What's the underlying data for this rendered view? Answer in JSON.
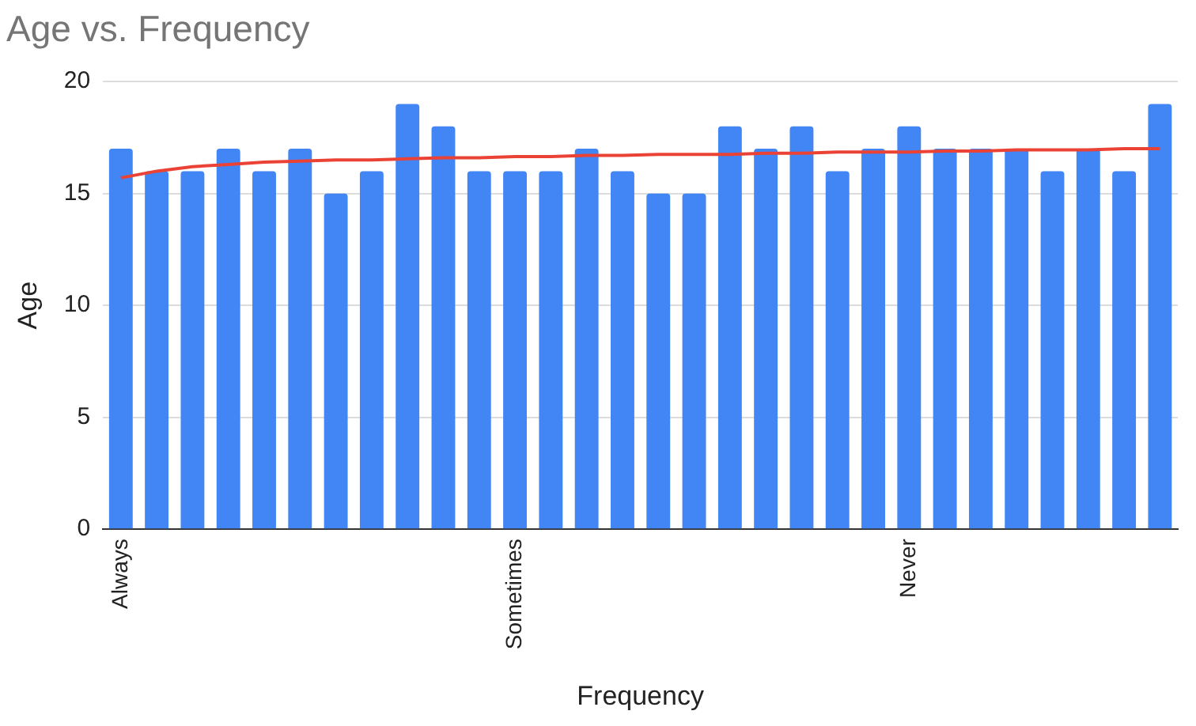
{
  "chart_data": {
    "type": "bar",
    "title": "Age vs. Frequency",
    "xlabel": "Frequency",
    "ylabel": "Age",
    "categories": [
      "Always",
      null,
      null,
      null,
      null,
      null,
      null,
      null,
      null,
      null,
      null,
      "Sometimes",
      null,
      null,
      null,
      null,
      null,
      null,
      null,
      null,
      null,
      null,
      "Never",
      null,
      null,
      null,
      null,
      null,
      null,
      null
    ],
    "series": [
      {
        "color": "#4285f4",
        "values": [
          17,
          16,
          16,
          17,
          16,
          17,
          15,
          16,
          19,
          18,
          16,
          16,
          16,
          17,
          16,
          15,
          15,
          18,
          17,
          18,
          16,
          17,
          18,
          17,
          17,
          17,
          16,
          17,
          16,
          19
        ]
      },
      {
        "type": "line",
        "color": "#ea4335",
        "values": [
          15.7,
          16.0,
          16.2,
          16.3,
          16.4,
          16.45,
          16.5,
          16.5,
          16.55,
          16.6,
          16.6,
          16.65,
          16.65,
          16.7,
          16.7,
          16.75,
          16.75,
          16.75,
          16.8,
          16.8,
          16.85,
          16.85,
          16.85,
          16.9,
          16.9,
          16.95,
          16.95,
          16.95,
          17.0,
          17.0
        ]
      }
    ],
    "ylim": [
      0,
      20
    ],
    "yticks": [
      0,
      5,
      10,
      15,
      20
    ],
    "grid": "y",
    "legend": false,
    "marker": "none"
  }
}
